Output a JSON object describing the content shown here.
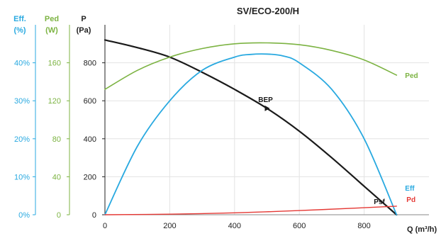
{
  "chart_data": {
    "type": "line",
    "title": "SV/ECO-200/H",
    "x_axis": {
      "label": "Q (m³/h)",
      "range": [
        0,
        1000
      ],
      "ticks": [
        0,
        200,
        400,
        600,
        800
      ]
    },
    "y_axes": [
      {
        "id": "p",
        "label_line1": "P",
        "label_line2": "(Pa)",
        "range": [
          0,
          1000
        ],
        "ticks": [
          0,
          200,
          400,
          600,
          800
        ],
        "tick_labels": [
          "0",
          "200",
          "400",
          "600",
          "800"
        ],
        "color": "#222222"
      },
      {
        "id": "ped",
        "label_line1": "Ped",
        "label_line2": "(W)",
        "range": [
          0,
          200
        ],
        "ticks": [
          0,
          40,
          80,
          120,
          160
        ],
        "tick_labels": [
          "0",
          "40",
          "80",
          "120",
          "160"
        ],
        "color": "#7cb342"
      },
      {
        "id": "eff",
        "label_line1": "Eff.",
        "label_line2": "(%)",
        "range": [
          0,
          50
        ],
        "ticks": [
          0,
          10,
          20,
          30,
          40
        ],
        "tick_labels": [
          "0%",
          "10%",
          "20%",
          "30%",
          "40%"
        ],
        "color": "#29a9e0"
      }
    ],
    "grid": true,
    "series": [
      {
        "name": "Psf",
        "axis": "p",
        "color": "#1a1a1a",
        "x": [
          0,
          100,
          200,
          300,
          400,
          500,
          600,
          700,
          800,
          900
        ],
        "y": [
          920,
          880,
          830,
          750,
          660,
          560,
          440,
          300,
          150,
          0
        ]
      },
      {
        "name": "Ped",
        "axis": "ped",
        "color": "#7cb342",
        "x": [
          0,
          100,
          200,
          300,
          400,
          500,
          600,
          700,
          800,
          900
        ],
        "y": [
          132,
          152,
          166,
          175,
          180,
          181,
          179,
          173,
          163,
          147
        ]
      },
      {
        "name": "Eff",
        "axis": "eff",
        "color": "#29a9e0",
        "x": [
          0,
          100,
          200,
          300,
          400,
          450,
          500,
          550,
          600,
          700,
          800,
          900
        ],
        "y": [
          0,
          18,
          30,
          38,
          41.5,
          42.2,
          42.3,
          41.8,
          40,
          33,
          20,
          0
        ]
      },
      {
        "name": "Pd",
        "axis": "p",
        "color": "#e53935",
        "x": [
          0,
          200,
          400,
          600,
          800,
          900
        ],
        "y": [
          0,
          3,
          10,
          22,
          37,
          45
        ]
      }
    ],
    "annotations": [
      {
        "text": "BEP",
        "x": 500,
        "y": 560,
        "axis": "p",
        "marker": true,
        "color": "#1a1a1a"
      }
    ],
    "legend": "labels at curve ends"
  }
}
